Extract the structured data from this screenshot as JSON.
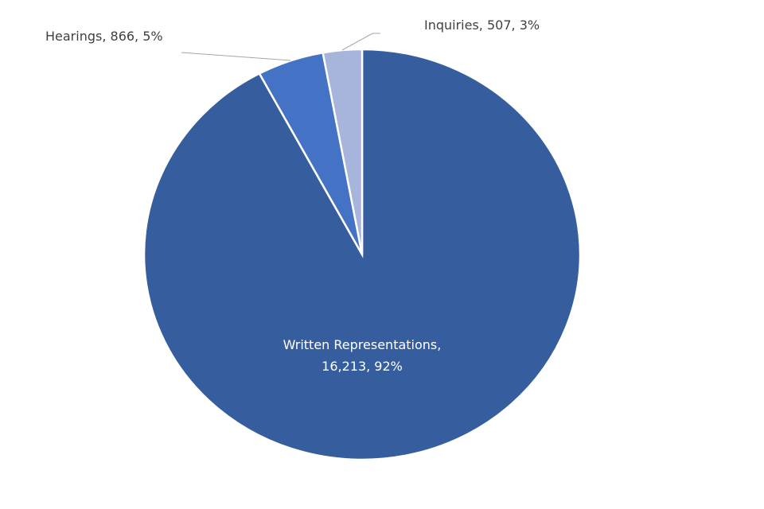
{
  "chart_data": {
    "type": "pie",
    "values": [
      16213,
      866,
      507
    ],
    "value_labels": [
      "Written Representations, 16,213, 92%",
      "Hearings, 866, 5%",
      "Inquiries, 507, 3%"
    ],
    "colors": [
      "#365e9f",
      "#4472c4",
      "#a7b4db"
    ]
  }
}
